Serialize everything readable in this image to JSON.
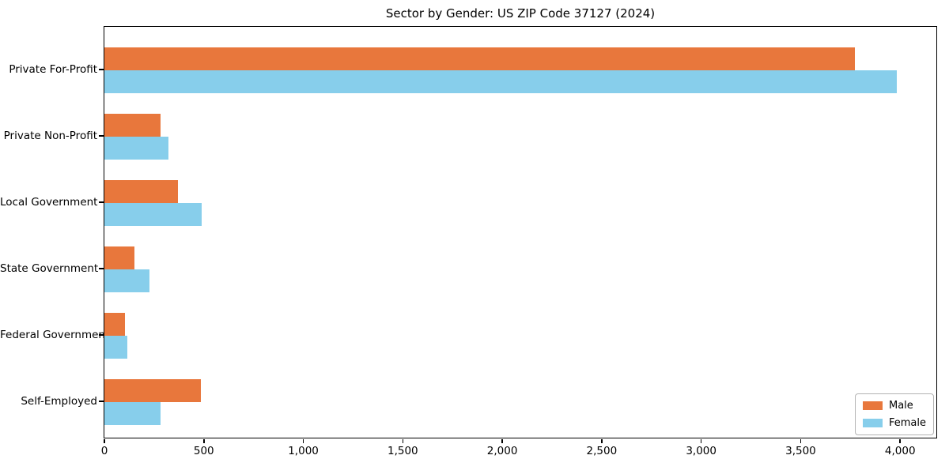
{
  "chart_data": {
    "type": "bar",
    "orientation": "horizontal",
    "title": "Sector by Gender: US ZIP Code 37127 (2024)",
    "categories": [
      "Private For-Profit",
      "Private Non-Profit",
      "Local Government",
      "State Government",
      "Federal Government",
      "Self-Employed"
    ],
    "series": [
      {
        "name": "Male",
        "color": "#e8773c",
        "values": [
          3770,
          280,
          370,
          150,
          105,
          485
        ]
      },
      {
        "name": "Female",
        "color": "#87ceeb",
        "values": [
          3980,
          320,
          490,
          225,
          115,
          280
        ]
      }
    ],
    "xlabel": "",
    "ylabel": "",
    "xlim": [
      0,
      4178
    ],
    "x_ticks": [
      0,
      500,
      1000,
      1500,
      2000,
      2500,
      3000,
      3500,
      4000
    ],
    "x_tick_labels": [
      "0",
      "500",
      "1,000",
      "1,500",
      "2,000",
      "2,500",
      "3,000",
      "3,500",
      "4,000"
    ],
    "grid": false,
    "legend": {
      "position": "lower right"
    },
    "colors": {
      "spine": "#000000",
      "legend_border": "#b3b3b3",
      "background": "#ffffff"
    }
  }
}
